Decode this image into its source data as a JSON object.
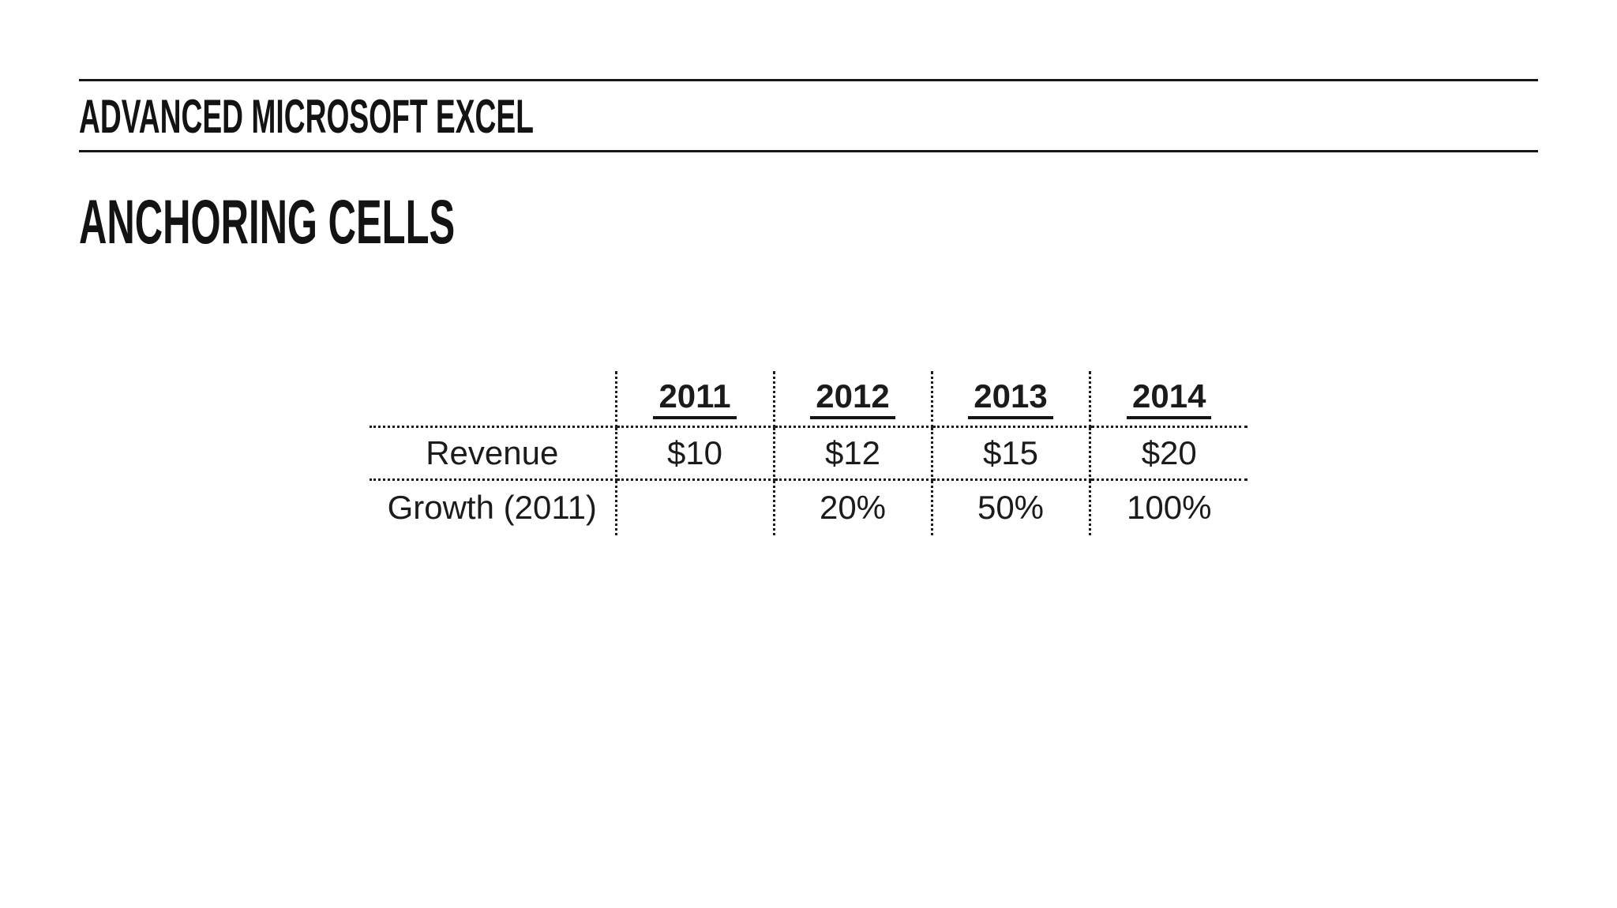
{
  "meta": {
    "background": "#ffffff",
    "ink": "#151515"
  },
  "header": {
    "kicker": "ADVANCED MICROSOFT EXCEL"
  },
  "section": {
    "title": "ANCHORING CELLS"
  },
  "table": {
    "columns": [
      "",
      "2011",
      "2012",
      "2013",
      "2014"
    ],
    "rows": [
      {
        "label": "Revenue",
        "values": [
          "$10",
          "$12",
          "$15",
          "$20"
        ]
      },
      {
        "label": "Growth (2011)",
        "values": [
          "",
          "20%",
          "50%",
          "100%"
        ]
      }
    ]
  }
}
